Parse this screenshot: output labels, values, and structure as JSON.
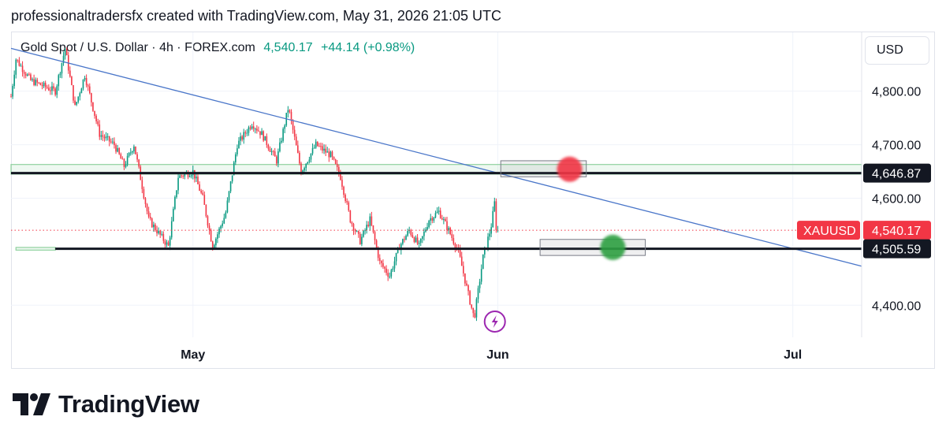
{
  "header": {
    "attribution": "professionaltradersfx created with TradingView.com, May 31, 2026 21:05 UTC"
  },
  "symbol": {
    "name": "Gold Spot / U.S. Dollar · 4h · FOREX.com",
    "price": "4,540.17",
    "change": "+44.14 (+0.98%)"
  },
  "currency_button": "USD",
  "footer": {
    "brand": "TradingView"
  },
  "colors": {
    "up": "#089981",
    "down": "#f23645",
    "trendline": "#4a76c9",
    "zone": "#8fd19e",
    "level": "#131722"
  },
  "icons": {
    "logo": "tradingview-logo-icon",
    "event": "lightning-bolt-icon"
  },
  "chart_data": {
    "type": "candlestick",
    "symbol": "XAUUSD",
    "interval": "4h",
    "ylim": [
      4340,
      4910
    ],
    "y_ticks": [
      {
        "value": 4800,
        "label": "4,800.00"
      },
      {
        "value": 4700,
        "label": "4,700.00"
      },
      {
        "value": 4600,
        "label": "4,600.00"
      },
      {
        "value": 4400,
        "label": "4,400.00"
      }
    ],
    "x_ticks": [
      {
        "label": "May",
        "day": 0
      },
      {
        "label": "Jun",
        "day": 31
      },
      {
        "label": "Jul",
        "day": 61
      }
    ],
    "x_range_days": [
      -18.5,
      68
    ],
    "price_labels": [
      {
        "value": 4646.87,
        "label": "4,646.87",
        "kind": "level"
      },
      {
        "value": 4540.17,
        "label": "4,540.17",
        "kind": "last",
        "tag": "XAUUSD"
      },
      {
        "value": 4505.59,
        "label": "4,505.59",
        "kind": "level"
      }
    ],
    "levels": [
      {
        "value": 4646.87,
        "day_start": -18.5,
        "day_end": 68
      },
      {
        "value": 4505.59,
        "day_start": -14,
        "day_end": 68
      }
    ],
    "zones": [
      {
        "low": 4645,
        "high": 4663,
        "day_start": -18.5,
        "day_end": 68
      },
      {
        "low": 4503,
        "high": 4508,
        "day_start": -18,
        "day_end": -14
      }
    ],
    "trendline": {
      "from": {
        "day": -18.5,
        "value": 4880
      },
      "to": {
        "day": 68,
        "value": 4473
      }
    },
    "boxes": [
      {
        "day_start": 31.3,
        "day_end": 40,
        "low": 4640,
        "high": 4670
      },
      {
        "day_start": 35.3,
        "day_end": 46,
        "low": 4493,
        "high": 4523
      }
    ],
    "markers": [
      {
        "day": 38.3,
        "value": 4654,
        "color": "#f23645"
      },
      {
        "day": 42.7,
        "value": 4508,
        "color": "#2ea043"
      }
    ],
    "last_price": 4540.17,
    "event_icon": {
      "day": 30.7
    },
    "price_path": [
      {
        "day": -18.5,
        "value": 4790
      },
      {
        "day": -18,
        "value": 4860
      },
      {
        "day": -16.5,
        "value": 4820
      },
      {
        "day": -14,
        "value": 4800
      },
      {
        "day": -13,
        "value": 4880
      },
      {
        "day": -12,
        "value": 4770
      },
      {
        "day": -11,
        "value": 4830
      },
      {
        "day": -9.5,
        "value": 4720
      },
      {
        "day": -8,
        "value": 4700
      },
      {
        "day": -7,
        "value": 4660
      },
      {
        "day": -6,
        "value": 4700
      },
      {
        "day": -4.5,
        "value": 4560
      },
      {
        "day": -2.5,
        "value": 4510
      },
      {
        "day": -1.5,
        "value": 4640
      },
      {
        "day": 0,
        "value": 4650
      },
      {
        "day": 1,
        "value": 4600
      },
      {
        "day": 2,
        "value": 4510
      },
      {
        "day": 3.3,
        "value": 4570
      },
      {
        "day": 4.5,
        "value": 4700
      },
      {
        "day": 6,
        "value": 4740
      },
      {
        "day": 7,
        "value": 4720
      },
      {
        "day": 8.5,
        "value": 4670
      },
      {
        "day": 9.7,
        "value": 4770
      },
      {
        "day": 11,
        "value": 4650
      },
      {
        "day": 12.5,
        "value": 4700
      },
      {
        "day": 14,
        "value": 4680
      },
      {
        "day": 15,
        "value": 4640
      },
      {
        "day": 16,
        "value": 4560
      },
      {
        "day": 17,
        "value": 4520
      },
      {
        "day": 18,
        "value": 4560
      },
      {
        "day": 19,
        "value": 4480
      },
      {
        "day": 20,
        "value": 4455
      },
      {
        "day": 21,
        "value": 4510
      },
      {
        "day": 22,
        "value": 4540
      },
      {
        "day": 23,
        "value": 4510
      },
      {
        "day": 24,
        "value": 4560
      },
      {
        "day": 25,
        "value": 4575
      },
      {
        "day": 26,
        "value": 4540
      },
      {
        "day": 27,
        "value": 4500
      },
      {
        "day": 28,
        "value": 4420
      },
      {
        "day": 28.6,
        "value": 4375
      },
      {
        "day": 29.5,
        "value": 4490
      },
      {
        "day": 30.3,
        "value": 4545
      },
      {
        "day": 30.7,
        "value": 4595
      },
      {
        "day": 31,
        "value": 4540
      }
    ]
  }
}
